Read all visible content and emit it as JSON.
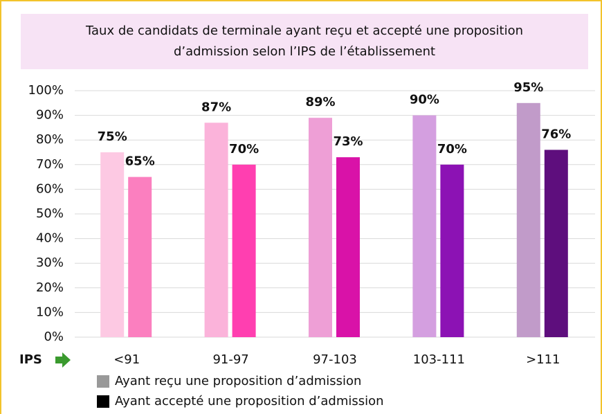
{
  "chart_data": {
    "type": "bar",
    "title": "Taux de candidats de terminale ayant reçu et accepté une proposition",
    "subtitle": "d’admission selon l’IPS de l’établissement",
    "x_axis_label": "IPS",
    "categories": [
      "<91",
      "91-97",
      "97-103",
      "103-111",
      ">111"
    ],
    "series": [
      {
        "name": "Ayant reçu une proposition d’admission",
        "color": "#999999",
        "colors": [
          "#fdc9e3",
          "#fbb3da",
          "#ee9fd6",
          "#d49fe0",
          "#c19bc9"
        ],
        "values": [
          75,
          87,
          89,
          90,
          95
        ],
        "value_labels": [
          "75%",
          "87%",
          "89%",
          "90%",
          "95%"
        ]
      },
      {
        "name": "Ayant accepté une proposition d’admission",
        "color": "#000000",
        "colors": [
          "#fb7fbf",
          "#ff3fb0",
          "#d912a8",
          "#8c12b4",
          "#5e0e7d"
        ],
        "values": [
          65,
          70,
          73,
          70,
          76
        ],
        "value_labels": [
          "65%",
          "70%",
          "73%",
          "70%",
          "76%"
        ]
      }
    ],
    "ylim": [
      0,
      100
    ],
    "yticks": [
      {
        "value": 0,
        "label": "0%"
      },
      {
        "value": 10,
        "label": "10%"
      },
      {
        "value": 20,
        "label": "20%"
      },
      {
        "value": 30,
        "label": "30%"
      },
      {
        "value": 40,
        "label": "40%"
      },
      {
        "value": 50,
        "label": "50%"
      },
      {
        "value": 60,
        "label": "60%"
      },
      {
        "value": 70,
        "label": "70%"
      },
      {
        "value": 80,
        "label": "80%"
      },
      {
        "value": 90,
        "label": "90%"
      },
      {
        "value": 100,
        "label": "100%"
      }
    ],
    "grid": true
  }
}
